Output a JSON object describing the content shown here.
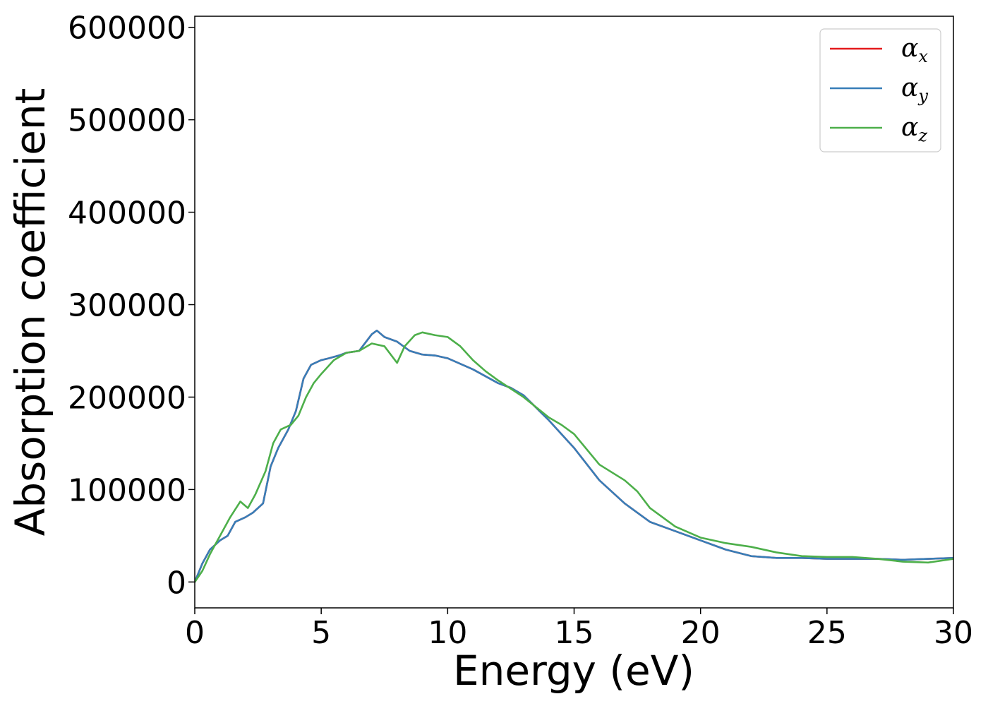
{
  "chart_data": {
    "type": "line",
    "xlabel": "Energy (eV)",
    "ylabel": "Absorption coefficient",
    "xlim": [
      0,
      30
    ],
    "ylim": [
      -28000,
      612000
    ],
    "xticks": [
      0,
      5,
      10,
      15,
      20,
      25,
      30
    ],
    "xtick_labels": [
      "0",
      "5",
      "10",
      "15",
      "20",
      "25",
      "30"
    ],
    "yticks": [
      0,
      100000,
      200000,
      300000,
      400000,
      500000,
      600000
    ],
    "ytick_labels": [
      "0",
      "100000",
      "200000",
      "300000",
      "400000",
      "500000",
      "600000"
    ],
    "grid": false,
    "legend_position": "top-right",
    "series": [
      {
        "name": "α",
        "subscript": "x",
        "color": "#e41a1c",
        "x": [
          0,
          0.3,
          0.6,
          1.0,
          1.3,
          1.6,
          2.0,
          2.3,
          2.7,
          3.0,
          3.3,
          3.7,
          4.0,
          4.3,
          4.6,
          5.0,
          5.3,
          5.7,
          6.0,
          6.5,
          7.0,
          7.2,
          7.5,
          8.0,
          8.5,
          9.0,
          9.5,
          10.0,
          11.0,
          12.0,
          12.5,
          13.0,
          14.0,
          15.0,
          16.0,
          17.0,
          18.0,
          19.0,
          20.0,
          21.0,
          22.0,
          23.0,
          24.0,
          25.0,
          26.0,
          27.0,
          28.0,
          29.0,
          30.0
        ],
        "y": [
          0,
          20000,
          35000,
          45000,
          50000,
          65000,
          70000,
          75000,
          85000,
          125000,
          145000,
          165000,
          185000,
          220000,
          235000,
          240000,
          242000,
          245000,
          248000,
          250000,
          268000,
          272000,
          265000,
          260000,
          250000,
          246000,
          245000,
          242000,
          230000,
          215000,
          210000,
          202000,
          175000,
          145000,
          110000,
          85000,
          65000,
          55000,
          45000,
          35000,
          28000,
          26000,
          26000,
          25000,
          25000,
          25000,
          24000,
          25000,
          26000
        ]
      },
      {
        "name": "α",
        "subscript": "y",
        "color": "#377eb8",
        "x": [
          0,
          0.3,
          0.6,
          1.0,
          1.3,
          1.6,
          2.0,
          2.3,
          2.7,
          3.0,
          3.3,
          3.7,
          4.0,
          4.3,
          4.6,
          5.0,
          5.3,
          5.7,
          6.0,
          6.5,
          7.0,
          7.2,
          7.5,
          8.0,
          8.5,
          9.0,
          9.5,
          10.0,
          11.0,
          12.0,
          12.5,
          13.0,
          14.0,
          15.0,
          16.0,
          17.0,
          18.0,
          19.0,
          20.0,
          21.0,
          22.0,
          23.0,
          24.0,
          25.0,
          26.0,
          27.0,
          28.0,
          29.0,
          30.0
        ],
        "y": [
          0,
          20000,
          35000,
          45000,
          50000,
          65000,
          70000,
          75000,
          85000,
          125000,
          145000,
          165000,
          185000,
          220000,
          235000,
          240000,
          242000,
          245000,
          248000,
          250000,
          268000,
          272000,
          265000,
          260000,
          250000,
          246000,
          245000,
          242000,
          230000,
          215000,
          210000,
          202000,
          175000,
          145000,
          110000,
          85000,
          65000,
          55000,
          45000,
          35000,
          28000,
          26000,
          26000,
          25000,
          25000,
          25000,
          24000,
          25000,
          26000
        ]
      },
      {
        "name": "α",
        "subscript": "z",
        "color": "#4daf4a",
        "x": [
          0,
          0.3,
          0.6,
          1.0,
          1.4,
          1.8,
          2.1,
          2.4,
          2.8,
          3.1,
          3.4,
          3.8,
          4.1,
          4.4,
          4.7,
          5.0,
          5.5,
          6.0,
          6.5,
          7.0,
          7.5,
          8.0,
          8.3,
          8.7,
          9.0,
          9.5,
          10.0,
          10.5,
          11.0,
          11.5,
          12.0,
          13.0,
          14.0,
          14.5,
          15.0,
          16.0,
          17.0,
          17.5,
          18.0,
          19.0,
          20.0,
          21.0,
          22.0,
          23.0,
          24.0,
          25.0,
          26.0,
          27.0,
          28.0,
          29.0,
          30.0
        ],
        "y": [
          0,
          12000,
          30000,
          50000,
          70000,
          87000,
          80000,
          95000,
          120000,
          150000,
          165000,
          170000,
          180000,
          200000,
          215000,
          225000,
          240000,
          248000,
          250000,
          258000,
          255000,
          237000,
          255000,
          267000,
          270000,
          267000,
          265000,
          255000,
          240000,
          228000,
          218000,
          200000,
          178000,
          170000,
          160000,
          127000,
          110000,
          98000,
          80000,
          60000,
          48000,
          42000,
          38000,
          32000,
          28000,
          27000,
          27000,
          25000,
          22000,
          21000,
          25000
        ]
      }
    ]
  }
}
